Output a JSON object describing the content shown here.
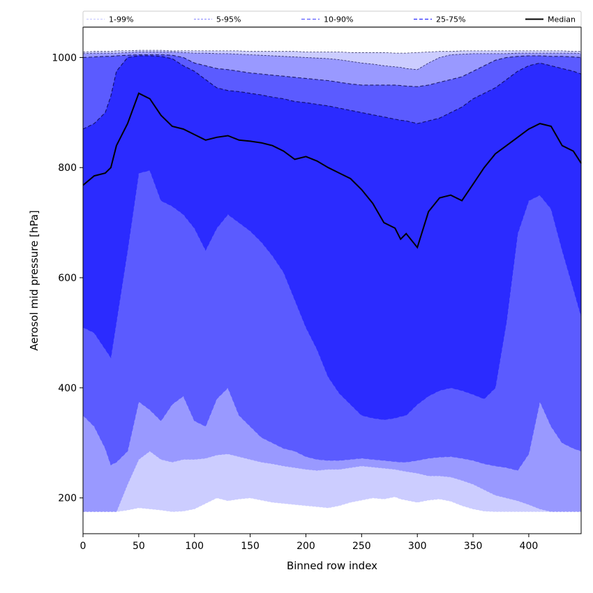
{
  "chart_data": {
    "type": "area",
    "title": "",
    "xlabel": "Binned row index",
    "ylabel": "Aerosol mid pressure [hPa]",
    "xlim": [
      0,
      447
    ],
    "ylim": [
      135,
      1055
    ],
    "xticks": [
      0,
      50,
      100,
      150,
      200,
      250,
      300,
      350,
      400
    ],
    "yticks": [
      200,
      400,
      600,
      800,
      1000
    ],
    "grid": false,
    "legend_position": "top",
    "x": [
      0,
      10,
      20,
      25,
      30,
      40,
      50,
      60,
      70,
      80,
      90,
      100,
      110,
      120,
      130,
      140,
      150,
      160,
      170,
      180,
      190,
      200,
      210,
      220,
      230,
      240,
      250,
      260,
      270,
      280,
      285,
      290,
      300,
      310,
      320,
      330,
      340,
      350,
      360,
      370,
      380,
      390,
      400,
      410,
      420,
      430,
      440,
      447
    ],
    "bands": [
      {
        "name": "1-99%",
        "color": "#cccdff",
        "lower": [
          175,
          175,
          175,
          175,
          175,
          178,
          182,
          180,
          178,
          175,
          176,
          180,
          190,
          200,
          195,
          198,
          200,
          196,
          192,
          190,
          188,
          186,
          184,
          182,
          186,
          192,
          196,
          200,
          198,
          202,
          198,
          196,
          192,
          196,
          198,
          194,
          186,
          180,
          176,
          175,
          175,
          175,
          175,
          175,
          175,
          175,
          175,
          175
        ],
        "upper": [
          1010,
          1011,
          1011,
          1011,
          1012,
          1012,
          1013,
          1013,
          1013,
          1012,
          1012,
          1012,
          1012,
          1012,
          1012,
          1012,
          1011,
          1011,
          1011,
          1011,
          1011,
          1010,
          1010,
          1010,
          1010,
          1009,
          1009,
          1009,
          1009,
          1008,
          1008,
          1008,
          1009,
          1010,
          1011,
          1011,
          1012,
          1012,
          1012,
          1012,
          1012,
          1012,
          1012,
          1012,
          1012,
          1012,
          1011,
          1011
        ]
      },
      {
        "name": "5-95%",
        "color": "#9999ff",
        "lower": [
          175,
          175,
          175,
          175,
          175,
          225,
          270,
          285,
          270,
          265,
          270,
          270,
          272,
          278,
          280,
          275,
          270,
          265,
          262,
          258,
          255,
          252,
          250,
          252,
          252,
          255,
          258,
          256,
          254,
          252,
          250,
          248,
          245,
          240,
          240,
          238,
          232,
          225,
          215,
          205,
          200,
          195,
          188,
          180,
          175,
          175,
          175,
          175
        ],
        "upper": [
          1007,
          1008,
          1008,
          1008,
          1008,
          1009,
          1010,
          1010,
          1010,
          1010,
          1009,
          1008,
          1008,
          1007,
          1007,
          1006,
          1005,
          1004,
          1003,
          1002,
          1001,
          1000,
          999,
          998,
          996,
          993,
          990,
          988,
          985,
          983,
          982,
          980,
          978,
          990,
          1000,
          1005,
          1006,
          1007,
          1007,
          1007,
          1007,
          1008,
          1008,
          1008,
          1008,
          1008,
          1008,
          1007
        ]
      },
      {
        "name": "10-90%",
        "color": "#5b5bff",
        "lower": [
          350,
          330,
          290,
          260,
          265,
          285,
          375,
          360,
          340,
          370,
          385,
          340,
          330,
          380,
          400,
          350,
          330,
          310,
          300,
          290,
          285,
          275,
          270,
          268,
          268,
          270,
          272,
          270,
          268,
          266,
          265,
          265,
          268,
          272,
          274,
          275,
          272,
          268,
          262,
          258,
          255,
          250,
          280,
          375,
          330,
          300,
          290,
          285
        ],
        "upper": [
          1000,
          1001,
          1002,
          1002,
          1003,
          1004,
          1005,
          1005,
          1005,
          1004,
          1000,
          990,
          985,
          980,
          978,
          975,
          972,
          970,
          968,
          966,
          964,
          962,
          960,
          958,
          955,
          952,
          950,
          950,
          950,
          950,
          949,
          948,
          947,
          950,
          955,
          960,
          965,
          975,
          985,
          995,
          1000,
          1002,
          1003,
          1003,
          1002,
          1002,
          1001,
          1000
        ]
      },
      {
        "name": "25-75%",
        "color": "#2b2bff",
        "lower": [
          510,
          500,
          470,
          455,
          520,
          650,
          790,
          795,
          740,
          730,
          715,
          690,
          650,
          690,
          715,
          700,
          685,
          665,
          640,
          610,
          560,
          510,
          470,
          420,
          390,
          370,
          350,
          345,
          342,
          345,
          348,
          350,
          370,
          385,
          395,
          400,
          395,
          388,
          380,
          400,
          520,
          680,
          740,
          750,
          725,
          650,
          580,
          530
        ],
        "upper": [
          870,
          880,
          900,
          930,
          975,
          1000,
          1003,
          1003,
          1002,
          998,
          985,
          975,
          960,
          945,
          940,
          938,
          935,
          932,
          928,
          925,
          920,
          918,
          915,
          912,
          908,
          904,
          900,
          896,
          892,
          888,
          886,
          885,
          880,
          885,
          890,
          900,
          910,
          925,
          935,
          945,
          960,
          975,
          985,
          990,
          985,
          980,
          975,
          970
        ]
      }
    ],
    "median": {
      "name": "Median",
      "color": "#000000",
      "values": [
        768,
        785,
        790,
        800,
        840,
        880,
        935,
        925,
        895,
        875,
        870,
        860,
        850,
        855,
        858,
        850,
        848,
        845,
        840,
        830,
        815,
        820,
        812,
        800,
        790,
        780,
        760,
        735,
        700,
        690,
        670,
        680,
        655,
        720,
        745,
        750,
        740,
        770,
        800,
        825,
        840,
        855,
        870,
        880,
        875,
        840,
        830,
        808
      ]
    },
    "legend": [
      {
        "label": "1-99%",
        "style": "band-edge",
        "color": "#cccdff"
      },
      {
        "label": "5-95%",
        "style": "band-edge",
        "color": "#9999ff"
      },
      {
        "label": "10-90%",
        "style": "band-edge",
        "color": "#5b5bff"
      },
      {
        "label": "25-75%",
        "style": "band-edge",
        "color": "#2b2bff"
      },
      {
        "label": "Median",
        "style": "solid",
        "color": "#000000"
      }
    ]
  }
}
